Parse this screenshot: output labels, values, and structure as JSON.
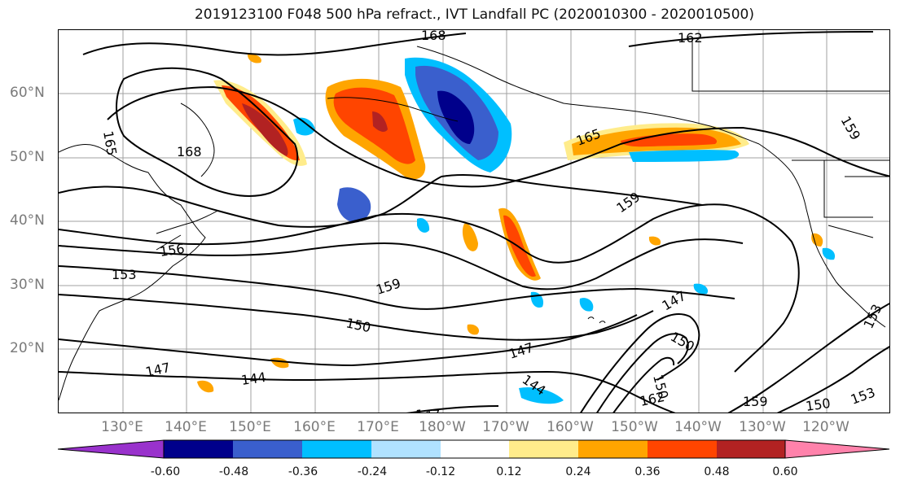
{
  "title": "2019123100 F048 500 hPa refract., IVT Landfall PC (2020010300 - 2020010500)",
  "map": {
    "lat_labels": [
      "60°N",
      "50°N",
      "40°N",
      "30°N",
      "20°N"
    ],
    "lon_labels": [
      "130°E",
      "140°E",
      "150°E",
      "160°E",
      "170°E",
      "180°W",
      "170°W",
      "160°W",
      "150°W",
      "140°W",
      "130°W",
      "120°W"
    ],
    "contour_labels": [
      "168",
      "162",
      "159",
      "165",
      "168",
      "165",
      "159",
      "156",
      "153",
      "159",
      "147",
      "150",
      "150",
      "147",
      "144",
      "147",
      "144",
      "147",
      "162",
      "159",
      "150",
      "153",
      "153",
      "150"
    ],
    "contour_color": "#000000",
    "gridline_color": "#a0a0a0",
    "coastline_color": "#000000"
  },
  "colorbar": {
    "colors": [
      "#9932cc",
      "#00008b",
      "#3a5fcd",
      "#00bfff",
      "#b0e2ff",
      "#ffffff",
      "#ffec8b",
      "#ffa500",
      "#ff4500",
      "#b22222",
      "#ff82ab"
    ],
    "tick_labels": [
      "-0.60",
      "-0.48",
      "-0.36",
      "-0.24",
      "-0.12",
      "0.12",
      "0.24",
      "0.36",
      "0.48",
      "0.60"
    ]
  }
}
